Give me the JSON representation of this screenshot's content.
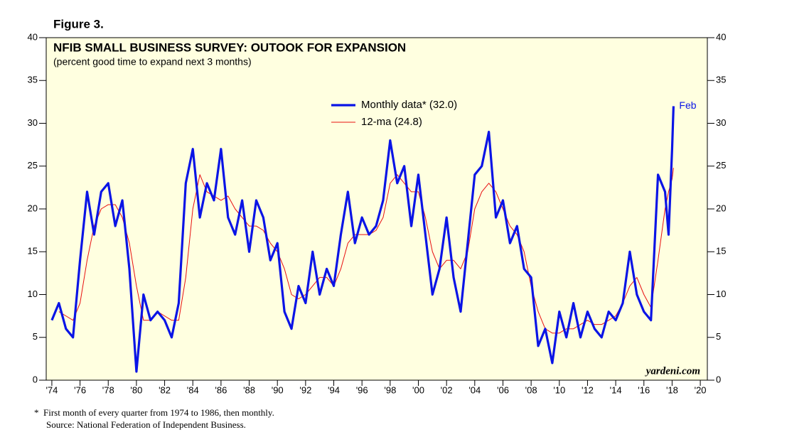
{
  "chart_data": {
    "type": "line",
    "figure_label": "Figure 3.",
    "title": "NFIB SMALL BUSINESS SURVEY: OUTOOK FOR EXPANSION",
    "subtitle": "(percent good time to expand next 3 months)",
    "annotation": "Feb",
    "watermark": "yardeni.com",
    "footnotes": [
      "*  First month of every quarter from 1974 to 1986, then monthly.",
      "Source: National Federation of Independent Business."
    ],
    "x": [
      1974,
      1974.5,
      1975,
      1975.5,
      1976,
      1976.5,
      1977,
      1977.5,
      1978,
      1978.5,
      1979,
      1979.5,
      1980,
      1980.5,
      1981,
      1981.5,
      1982,
      1982.5,
      1983,
      1983.5,
      1984,
      1984.5,
      1985,
      1985.5,
      1986,
      1986.5,
      1987,
      1987.5,
      1988,
      1988.5,
      1989,
      1989.5,
      1990,
      1990.5,
      1991,
      1991.5,
      1992,
      1992.5,
      1993,
      1993.5,
      1994,
      1994.5,
      1995,
      1995.5,
      1996,
      1996.5,
      1997,
      1997.5,
      1998,
      1998.5,
      1999,
      1999.5,
      2000,
      2000.5,
      2001,
      2001.5,
      2002,
      2002.5,
      2003,
      2003.5,
      2004,
      2004.5,
      2005,
      2005.5,
      2006,
      2006.5,
      2007,
      2007.5,
      2008,
      2008.5,
      2009,
      2009.5,
      2010,
      2010.5,
      2011,
      2011.5,
      2012,
      2012.5,
      2013,
      2013.5,
      2014,
      2014.5,
      2015,
      2015.5,
      2016,
      2016.5,
      2017,
      2017.5,
      2017.75,
      2018,
      2018.1
    ],
    "series": [
      {
        "name": "Monthly data* (32.0)",
        "color": "#0a14e6",
        "width": 3.2,
        "values": [
          7,
          9,
          6,
          5,
          14,
          22,
          17,
          22,
          23,
          18,
          21,
          13,
          1,
          10,
          7,
          8,
          7,
          5,
          9,
          23,
          27,
          19,
          23,
          21,
          27,
          19,
          17,
          21,
          15,
          21,
          19,
          14,
          16,
          8,
          6,
          11,
          9,
          15,
          10,
          13,
          11,
          17,
          22,
          16,
          19,
          17,
          18,
          21,
          28,
          23,
          25,
          18,
          24,
          17,
          10,
          13,
          19,
          12,
          8,
          16,
          24,
          25,
          29,
          19,
          21,
          16,
          18,
          13,
          12,
          4,
          6,
          2,
          8,
          5,
          9,
          5,
          8,
          6,
          5,
          8,
          7,
          9,
          15,
          10,
          8,
          7,
          24,
          22,
          17,
          27,
          32
        ]
      },
      {
        "name": "12-ma (24.8)",
        "color": "#e81010",
        "width": 1,
        "values": [
          null,
          8,
          7.5,
          7,
          9,
          14,
          18,
          20,
          20.5,
          20.5,
          19,
          16,
          11,
          7,
          7,
          8,
          7.5,
          7,
          7,
          12,
          20,
          24,
          22,
          21.5,
          21,
          21.5,
          20,
          19,
          18,
          18,
          17.5,
          16,
          15,
          13,
          10,
          9.5,
          10,
          11,
          12,
          12,
          11,
          13,
          16,
          17,
          17,
          17,
          17.5,
          19,
          23,
          24,
          23,
          22,
          22,
          19,
          15,
          13,
          14,
          14,
          13,
          15,
          20,
          22,
          23,
          22,
          20,
          18,
          17,
          15,
          11,
          8,
          6,
          5.5,
          5.5,
          6,
          6,
          6.5,
          7,
          6.5,
          6.5,
          7,
          7.5,
          9,
          11,
          12,
          10,
          8.5,
          14,
          20,
          22,
          23.5,
          24.8
        ]
      }
    ],
    "xlim": [
      1973.6,
      2020.5
    ],
    "xticks": [
      {
        "value": 1974,
        "label": "'74"
      },
      {
        "value": 1976,
        "label": "'76"
      },
      {
        "value": 1978,
        "label": "'78"
      },
      {
        "value": 1980,
        "label": "'80"
      },
      {
        "value": 1982,
        "label": "'82"
      },
      {
        "value": 1984,
        "label": "'84"
      },
      {
        "value": 1986,
        "label": "'86"
      },
      {
        "value": 1988,
        "label": "'88"
      },
      {
        "value": 1990,
        "label": "'90"
      },
      {
        "value": 1992,
        "label": "'92"
      },
      {
        "value": 1994,
        "label": "'94"
      },
      {
        "value": 1996,
        "label": "'96"
      },
      {
        "value": 1998,
        "label": "'98"
      },
      {
        "value": 2000,
        "label": "'00"
      },
      {
        "value": 2002,
        "label": "'02"
      },
      {
        "value": 2004,
        "label": "'04"
      },
      {
        "value": 2006,
        "label": "'06"
      },
      {
        "value": 2008,
        "label": "'08"
      },
      {
        "value": 2010,
        "label": "'10"
      },
      {
        "value": 2012,
        "label": "'12"
      },
      {
        "value": 2014,
        "label": "'14"
      },
      {
        "value": 2016,
        "label": "'16"
      },
      {
        "value": 2018,
        "label": "'18"
      },
      {
        "value": 2020,
        "label": "'20"
      }
    ],
    "ylim": [
      0,
      40
    ],
    "yticks": [
      0,
      5,
      10,
      15,
      20,
      25,
      30,
      35,
      40
    ],
    "background": "#ffffe0"
  }
}
